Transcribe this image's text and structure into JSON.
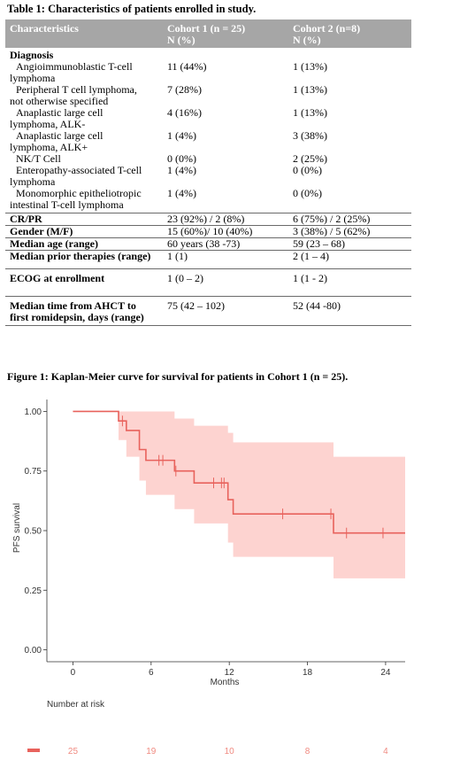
{
  "table": {
    "title": "Table 1: Characteristics of patients enrolled in study.",
    "header": {
      "c1": "Characteristics",
      "c2_line1": "Cohort 1 (n = 25)",
      "c2_line2": "N (%)",
      "c3_line1": "Cohort 2 (n=8)",
      "c3_line2": "N (%)"
    },
    "diagnosis_label": "Diagnosis",
    "diagnosis_rows": [
      {
        "label_a": "Angioimmunoblastic T-cell",
        "label_b": "lymphoma",
        "c1": "11 (44%)",
        "c2": "1 (13%)"
      },
      {
        "label_a": "Peripheral T cell lymphoma,",
        "label_b": "not otherwise specified",
        "c1": "7 (28%)",
        "c2": "1 (13%)"
      },
      {
        "label_a": "Anaplastic large cell",
        "label_b": "lymphoma, ALK-",
        "c1": "4 (16%)",
        "c2": "1 (13%)"
      },
      {
        "label_a": "Anaplastic large cell",
        "label_b": "lymphoma, ALK+",
        "c1": "1 (4%)",
        "c2": "3 (38%)"
      },
      {
        "label_a": "NK/T Cell",
        "label_b": "",
        "c1": "0 (0%)",
        "c2": "2 (25%)"
      },
      {
        "label_a": "Enteropathy-associated T-cell",
        "label_b": "lymphoma",
        "c1": "1 (4%)",
        "c2": "0 (0%)"
      },
      {
        "label_a": "Monomorphic epitheliotropic",
        "label_b": "intestinal T-cell lymphoma",
        "c1": "1 (4%)",
        "c2": "0 (0%)"
      }
    ],
    "rows": [
      {
        "label": "CR/PR",
        "c1": "23 (92%) / 2 (8%)",
        "c2": "6 (75%) / 2 (25%)"
      },
      {
        "label": "Gender (M/F)",
        "c1": "15 (60%)/ 10 (40%)",
        "c2": "3 (38%) / 5 (62%)"
      },
      {
        "label": "Median age (range)",
        "c1": "60 years (38 -73)",
        "c2": "59 (23 – 68)"
      },
      {
        "label": "Median prior therapies (range)",
        "c1": "1 (1)",
        "c2": "2 (1 – 4)"
      },
      {
        "label": "ECOG at enrollment",
        "c1": "1 (0 – 2)",
        "c2": "1 (1 - 2)"
      }
    ],
    "last_row": {
      "label_a": "Median time from AHCT to",
      "label_b": "first romidepsin, days (range)",
      "c1": "75 (42 – 102)",
      "c2": "52 (44 -80)"
    }
  },
  "figure": {
    "title": "Figure 1: Kaplan-Meier curve for survival for patients in Cohort 1 (n = 25).",
    "number_at_risk_label": "Number at risk"
  },
  "colors": {
    "curve": "#e8625c",
    "band": "#fdd3d0",
    "axis": "#333333",
    "risk_text": "#f08a80"
  },
  "chart_data": {
    "type": "line",
    "title": "",
    "xlabel": "Months",
    "ylabel": "PFS survival",
    "xlim": [
      -2,
      25.5
    ],
    "ylim": [
      -0.05,
      1.05
    ],
    "x_ticks": [
      0,
      6,
      12,
      18,
      24
    ],
    "y_ticks": [
      0.0,
      0.25,
      0.5,
      0.75,
      1.0
    ],
    "y_tick_labels": [
      "0.00",
      "0.25",
      "0.50",
      "0.75",
      "1.00"
    ],
    "grid": false,
    "series": [
      {
        "step_points": [
          [
            0,
            1.0
          ],
          [
            3.5,
            1.0
          ],
          [
            3.5,
            0.96
          ],
          [
            4.1,
            0.96
          ],
          [
            4.1,
            0.92
          ],
          [
            5.1,
            0.92
          ],
          [
            5.1,
            0.84
          ],
          [
            5.6,
            0.84
          ],
          [
            5.6,
            0.795
          ],
          [
            7.8,
            0.795
          ],
          [
            7.8,
            0.75
          ],
          [
            9.3,
            0.75
          ],
          [
            9.3,
            0.7
          ],
          [
            11.9,
            0.7
          ],
          [
            11.9,
            0.63
          ],
          [
            12.3,
            0.63
          ],
          [
            12.3,
            0.57
          ],
          [
            20.0,
            0.57
          ],
          [
            20.0,
            0.49
          ],
          [
            25.5,
            0.49
          ]
        ],
        "ci_upper": [
          [
            0,
            1.0
          ],
          [
            3.5,
            1.0
          ],
          [
            4.1,
            1.0
          ],
          [
            5.1,
            1.0
          ],
          [
            5.6,
            1.0
          ],
          [
            7.8,
            0.97
          ],
          [
            9.3,
            0.94
          ],
          [
            11.9,
            0.91
          ],
          [
            12.3,
            0.87
          ],
          [
            20.0,
            0.81
          ],
          [
            25.5,
            0.8
          ]
        ],
        "ci_lower": [
          [
            0,
            1.0
          ],
          [
            3.5,
            0.88
          ],
          [
            4.1,
            0.81
          ],
          [
            5.1,
            0.71
          ],
          [
            5.6,
            0.65
          ],
          [
            7.8,
            0.59
          ],
          [
            9.3,
            0.53
          ],
          [
            11.9,
            0.45
          ],
          [
            12.3,
            0.39
          ],
          [
            20.0,
            0.3
          ],
          [
            25.5,
            0.3
          ]
        ],
        "censors": [
          [
            3.8,
            0.96
          ],
          [
            6.6,
            0.795
          ],
          [
            6.9,
            0.795
          ],
          [
            7.9,
            0.75
          ],
          [
            10.8,
            0.7
          ],
          [
            11.4,
            0.7
          ],
          [
            11.6,
            0.7
          ],
          [
            16.1,
            0.57
          ],
          [
            19.8,
            0.57
          ],
          [
            21.0,
            0.49
          ],
          [
            23.8,
            0.49
          ]
        ]
      }
    ],
    "risk_table": {
      "times": [
        0,
        6,
        12,
        18,
        24
      ],
      "counts": [
        "25",
        "19",
        "10",
        "8",
        "4"
      ]
    }
  }
}
